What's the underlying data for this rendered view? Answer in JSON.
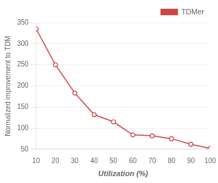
{
  "chart_data": {
    "type": "line",
    "x": [
      10,
      20,
      30,
      40,
      50,
      60,
      70,
      80,
      90,
      100
    ],
    "series": [
      {
        "name": "TDMer",
        "color": "#cc4444",
        "marker": "circle",
        "values": [
          335,
          250,
          183,
          132,
          115,
          84,
          82,
          75,
          62,
          52
        ]
      }
    ],
    "xlabel": "Utilization (%)",
    "ylabel": "Normalized improvement to TDM",
    "xlim": [
      10,
      100
    ],
    "ylim": [
      50,
      350
    ],
    "xticks": [
      10,
      20,
      30,
      40,
      50,
      60,
      70,
      80,
      90,
      100
    ],
    "yticks": [
      50,
      100,
      150,
      200,
      250,
      300,
      350
    ],
    "grid": "y",
    "legend": "upper right"
  }
}
